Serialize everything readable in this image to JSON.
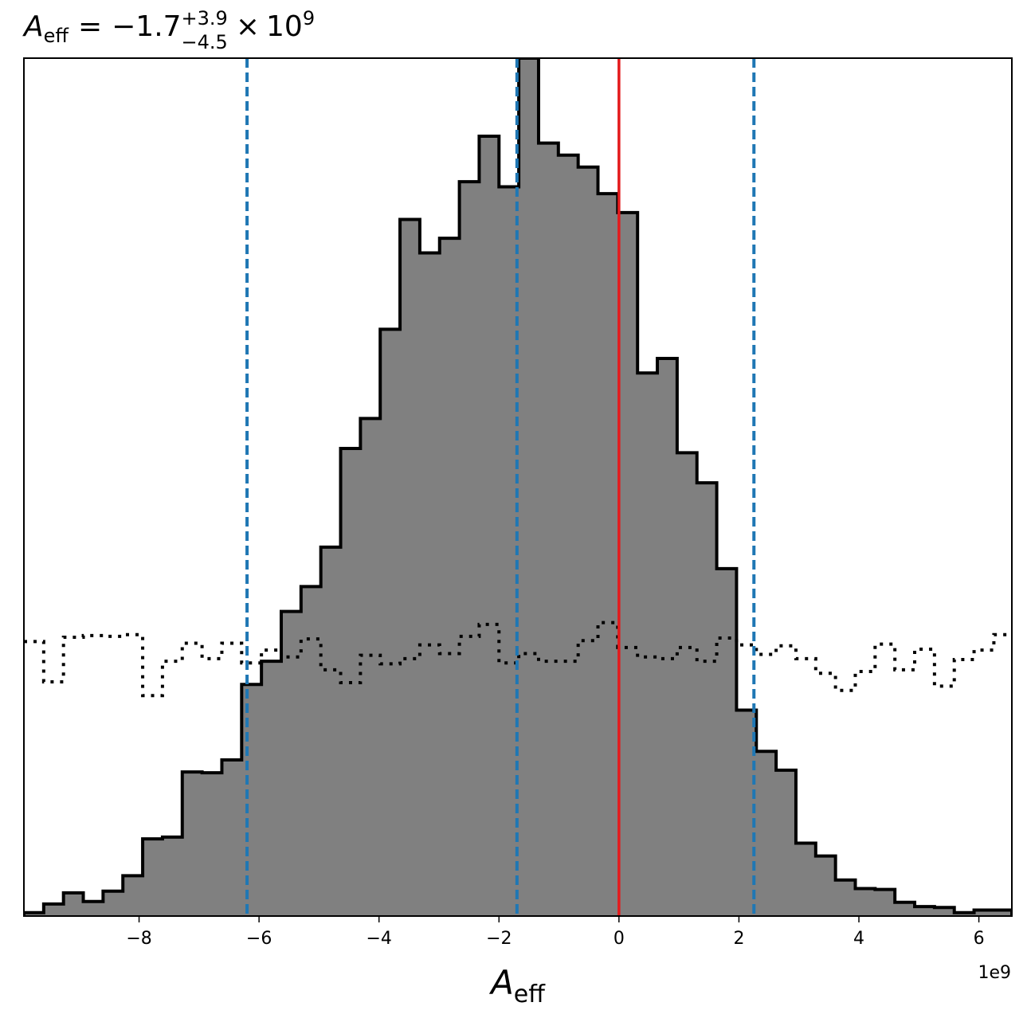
{
  "chart_data": {
    "type": "histogram",
    "title": {
      "symbol": "A",
      "symbol_subscript": "eff",
      "equals": "=",
      "median": "−1.7",
      "upper": "+3.9",
      "lower": "−4.5",
      "times": "×",
      "base": "10",
      "exponent": "9"
    },
    "xlabel": {
      "symbol": "A",
      "subscript": "eff"
    },
    "x_offset_label": "1e9",
    "xlim": [
      -9.92,
      6.55
    ],
    "x_unit_scale": 1000000000.0,
    "x_ticks": [
      -8,
      -6,
      -4,
      -2,
      0,
      2,
      4,
      6
    ],
    "x_tick_labels": [
      "−8",
      "−6",
      "−4",
      "−2",
      "0",
      "2",
      "4",
      "6"
    ],
    "y_axis_shown": false,
    "ylim": [
      0,
      1000
    ],
    "bin_edges": [
      -9.92,
      -9.59,
      -9.26,
      -8.93,
      -8.6,
      -8.27,
      -7.94,
      -7.61,
      -7.28,
      -6.95,
      -6.62,
      -6.29,
      -5.96,
      -5.63,
      -5.3,
      -4.97,
      -4.64,
      -4.31,
      -3.98,
      -3.65,
      -3.32,
      -2.99,
      -2.66,
      -2.33,
      -2.0,
      -1.67,
      -1.34,
      -1.01,
      -0.68,
      -0.35,
      -0.02,
      0.31,
      0.64,
      0.97,
      1.3,
      1.63,
      1.96,
      2.29,
      2.62,
      2.95,
      3.28,
      3.61,
      3.94,
      4.27,
      4.6,
      4.93,
      5.26,
      5.59,
      5.92,
      6.25,
      6.55
    ],
    "posterior_counts": [
      4,
      14,
      27,
      17,
      29,
      47,
      90,
      92,
      168,
      167,
      182,
      270,
      297,
      355,
      384,
      430,
      545,
      580,
      684,
      812,
      773,
      790,
      856,
      909,
      850,
      1000,
      901,
      887,
      873,
      842,
      820,
      633,
      650,
      540,
      505,
      405,
      240,
      192,
      170,
      85,
      70,
      42,
      32,
      31,
      16,
      11,
      10,
      4,
      7,
      7
    ],
    "prior_counts": [
      320,
      273,
      325,
      327,
      326,
      328,
      257,
      297,
      318,
      300,
      318,
      295,
      310,
      302,
      323,
      287,
      272,
      304,
      294,
      300,
      316,
      306,
      326,
      340,
      295,
      306,
      297,
      297,
      321,
      342,
      313,
      302,
      300,
      313,
      297,
      324,
      316,
      305,
      315,
      300,
      283,
      263,
      285,
      317,
      287,
      311,
      268,
      299,
      310,
      328
    ],
    "quantile_lines": [
      -6.2,
      -1.7,
      2.25
    ],
    "reference_line": 0,
    "colors": {
      "posterior_fill": "#808080",
      "posterior_edge": "#000000",
      "prior_line": "#000000",
      "quantile_line": "#1f77b4",
      "reference_line": "#e41a1c"
    }
  }
}
